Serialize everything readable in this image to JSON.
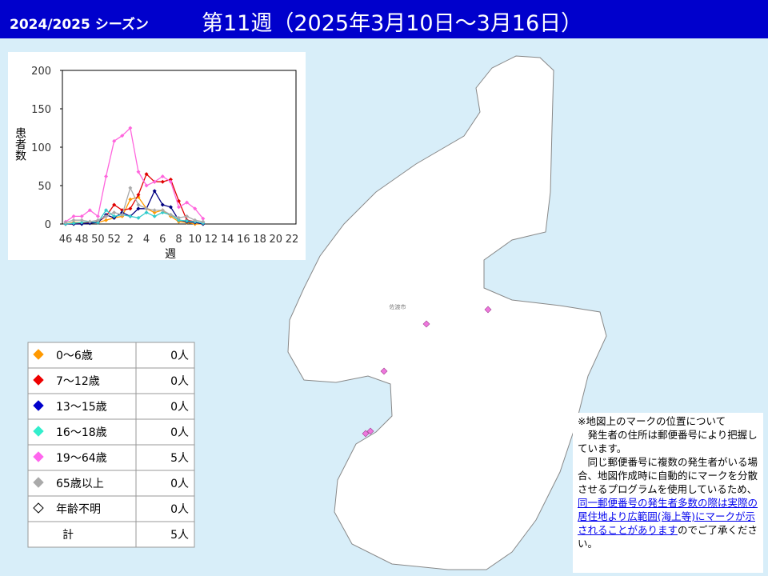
{
  "header": {
    "season": "2024/2025 シーズン",
    "title": "第11週（2025年3月10日～3月16日）"
  },
  "chart_data": {
    "type": "line",
    "ylabel": "患者数",
    "xlabel": "週",
    "categories": [
      "46",
      null,
      "48",
      null,
      "50",
      null,
      "52",
      null,
      "2",
      null,
      "4",
      null,
      "6",
      null,
      "8",
      null,
      "10",
      null,
      "12",
      null,
      "14",
      null,
      "16",
      null,
      "18",
      null,
      "20",
      null,
      "22"
    ],
    "ylim": [
      0,
      200
    ],
    "yticks": [
      0,
      50,
      100,
      150,
      200
    ],
    "series": [
      {
        "name": "0～6歳",
        "color": "#ff9900",
        "values": [
          0,
          2,
          2,
          3,
          2,
          5,
          8,
          10,
          32,
          35,
          20,
          15,
          18,
          10,
          3,
          2,
          0,
          0,
          null,
          null,
          null,
          null,
          null,
          null,
          null,
          null,
          null,
          null,
          null
        ]
      },
      {
        "name": "7～12歳",
        "color": "#e00000",
        "values": [
          0,
          0,
          1,
          2,
          3,
          10,
          25,
          18,
          20,
          38,
          65,
          55,
          55,
          58,
          30,
          5,
          3,
          1,
          null,
          null,
          null,
          null,
          null,
          null,
          null,
          null,
          null,
          null,
          null
        ]
      },
      {
        "name": "13～15歳",
        "color": "#000080",
        "values": [
          0,
          0,
          0,
          1,
          2,
          12,
          8,
          15,
          10,
          20,
          20,
          43,
          25,
          22,
          5,
          3,
          2,
          0,
          null,
          null,
          null,
          null,
          null,
          null,
          null,
          null,
          null,
          null,
          null
        ]
      },
      {
        "name": "16～18歳",
        "color": "#33cccc",
        "values": [
          0,
          1,
          2,
          3,
          2,
          18,
          10,
          12,
          10,
          8,
          15,
          10,
          15,
          12,
          5,
          4,
          3,
          1,
          null,
          null,
          null,
          null,
          null,
          null,
          null,
          null,
          null,
          null,
          null
        ]
      },
      {
        "name": "19～64歳",
        "color": "#ff66dd",
        "values": [
          3,
          10,
          10,
          18,
          10,
          62,
          108,
          115,
          125,
          68,
          50,
          55,
          62,
          55,
          22,
          28,
          20,
          7,
          null,
          null,
          null,
          null,
          null,
          null,
          null,
          null,
          null,
          null,
          null
        ]
      },
      {
        "name": "65歳以上",
        "color": "#aaaaaa",
        "values": [
          2,
          5,
          5,
          3,
          5,
          10,
          15,
          12,
          47,
          25,
          20,
          18,
          18,
          12,
          8,
          10,
          5,
          3,
          null,
          null,
          null,
          null,
          null,
          null,
          null,
          null,
          null,
          null,
          null
        ]
      }
    ]
  },
  "table": {
    "rows": [
      [
        "0～6歳",
        "0人"
      ],
      [
        "7～12歳",
        "0人"
      ],
      [
        "13～15歳",
        "0人"
      ],
      [
        "16～18歳",
        "0人"
      ],
      [
        "19～64歳",
        "5人"
      ],
      [
        "65歳以上",
        "0人"
      ],
      [
        "年齢不明",
        "0人"
      ],
      [
        "計",
        "5人"
      ]
    ]
  },
  "map": {
    "city": "佐渡市"
  },
  "note": {
    "heading": "※地図上のマークの位置について",
    "p1": "発生者の住所は郵便番号により把握しています。",
    "p2": "同じ郵便番号に複数の発生者がいる場合、地図作成時に自動的にマークを分散させるプログラムを使用しているため、",
    "link": "同一郵便番号の発生者多数の際は実際の居住地より広範囲(海上等)にマークが示されることがあります",
    "p3": "のでご了承ください。"
  }
}
